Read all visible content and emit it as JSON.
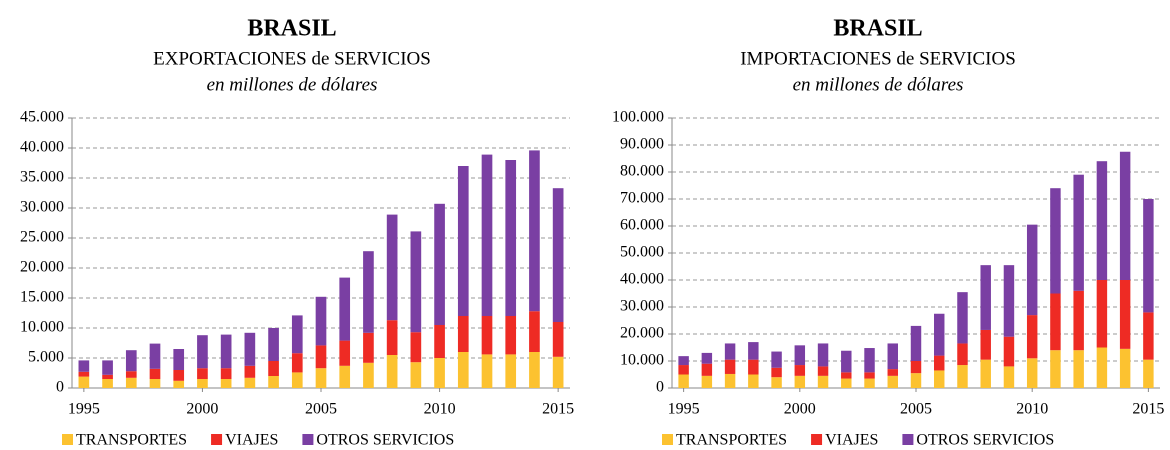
{
  "chart_data": [
    {
      "type": "bar",
      "stacked": true,
      "title": "BRASIL",
      "subtitle": "EXPORTACIONES de SERVICIOS",
      "subtitle2": "en millones de dólares",
      "categories": [
        "1995",
        null,
        null,
        null,
        null,
        "2000",
        null,
        null,
        null,
        null,
        "2005",
        null,
        null,
        null,
        null,
        "2010",
        null,
        null,
        null,
        null,
        "2015"
      ],
      "series": [
        {
          "name": "TRANSPORTES",
          "color": "#fcc230",
          "values": [
            1900,
            1500,
            1700,
            1500,
            1200,
            1500,
            1500,
            1700,
            2000,
            2600,
            3300,
            3700,
            4200,
            5500,
            4300,
            5000,
            6000,
            5600,
            5600,
            6000,
            5200
          ]
        },
        {
          "name": "VIAJES",
          "color": "#ee2b24",
          "values": [
            800,
            700,
            1100,
            1700,
            1800,
            1800,
            1800,
            2000,
            2500,
            3200,
            3800,
            4200,
            5000,
            5800,
            5000,
            5500,
            6000,
            6400,
            6400,
            6800,
            5800
          ]
        },
        {
          "name": "OTROS SERVICIOS",
          "color": "#7a3fa3",
          "values": [
            1900,
            2400,
            3500,
            4200,
            3500,
            5500,
            5600,
            5500,
            5500,
            6300,
            8100,
            10500,
            13600,
            17600,
            16800,
            20200,
            25000,
            26900,
            26000,
            26800,
            22300
          ]
        }
      ],
      "ylim": [
        0,
        45000
      ],
      "yticks": [
        0,
        {
          "value": 5000,
          "label": "5.000"
        },
        {
          "value": 10000,
          "label": "10.000"
        },
        {
          "value": 15000,
          "label": "15.000"
        },
        {
          "value": 20000,
          "label": "20.000"
        },
        {
          "value": 25000,
          "label": "25.000"
        },
        {
          "value": 30000,
          "label": "30.000"
        },
        {
          "value": 35000,
          "label": "35.000"
        },
        {
          "value": 40000,
          "label": "40.000"
        },
        {
          "value": 45000,
          "label": "45.000"
        }
      ],
      "grid": true,
      "legend": "bottom"
    },
    {
      "type": "bar",
      "stacked": true,
      "title": "BRASIL",
      "subtitle": "IMPORTACIONES de SERVICIOS",
      "subtitle2": "en millones de dólares",
      "categories": [
        "1995",
        null,
        null,
        null,
        null,
        "2000",
        null,
        null,
        null,
        null,
        "2005",
        null,
        null,
        null,
        null,
        "2010",
        null,
        null,
        null,
        null,
        "2015"
      ],
      "series": [
        {
          "name": "TRANSPORTES",
          "color": "#fcc230",
          "values": [
            5000,
            4500,
            5200,
            5000,
            4000,
            4500,
            4500,
            3500,
            3500,
            4500,
            5500,
            6500,
            8500,
            10500,
            8000,
            11000,
            14000,
            14000,
            15000,
            14500,
            10500
          ]
        },
        {
          "name": "VIAJES",
          "color": "#ee2b24",
          "values": [
            3500,
            4500,
            5300,
            5500,
            3500,
            4000,
            3500,
            2300,
            2300,
            2500,
            4500,
            5500,
            8000,
            11000,
            11000,
            16000,
            21000,
            22000,
            25000,
            25500,
            17500
          ]
        },
        {
          "name": "OTROS SERVICIOS",
          "color": "#7a3fa3",
          "values": [
            3300,
            4000,
            6000,
            6500,
            6000,
            7300,
            8500,
            8000,
            9000,
            9500,
            13000,
            15500,
            19000,
            24000,
            26500,
            33500,
            39000,
            43000,
            44000,
            47500,
            42000
          ]
        }
      ],
      "ylim": [
        0,
        100000
      ],
      "yticks": [
        0,
        {
          "value": 10000,
          "label": "10.000"
        },
        {
          "value": 20000,
          "label": "20.000"
        },
        {
          "value": 30000,
          "label": "30.000"
        },
        {
          "value": 40000,
          "label": "40.000"
        },
        {
          "value": 50000,
          "label": "50.000"
        },
        {
          "value": 60000,
          "label": "60.000"
        },
        {
          "value": 70000,
          "label": "70.000"
        },
        {
          "value": 80000,
          "label": "80.000"
        },
        {
          "value": 90000,
          "label": "90.000"
        },
        {
          "value": 100000,
          "label": "100.000"
        }
      ],
      "grid": true,
      "legend": "bottom"
    }
  ]
}
